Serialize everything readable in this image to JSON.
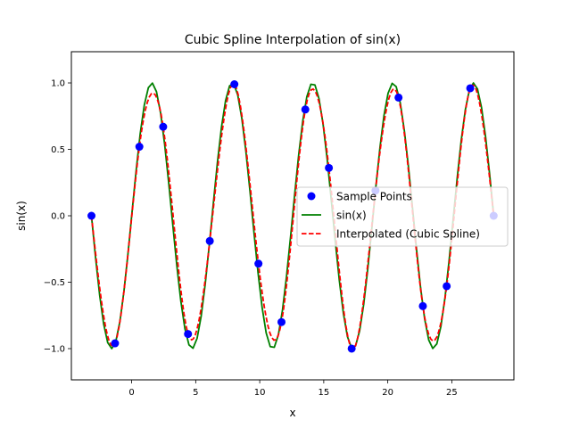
{
  "chart_data": {
    "type": "line",
    "title": "Cubic Spline Interpolation of sin(x)",
    "xlabel": "x",
    "ylabel": "sin(x)",
    "xlim": [
      -4.71,
      29.85
    ],
    "ylim": [
      -1.235,
      1.235
    ],
    "xticks": [
      0,
      5,
      10,
      15,
      20,
      25
    ],
    "xtick_labels": [
      "0",
      "5",
      "10",
      "15",
      "20",
      "25"
    ],
    "yticks": [
      -1.0,
      -0.5,
      0.0,
      0.5,
      1.0
    ],
    "ytick_labels": [
      "−1.0",
      "−0.5",
      "0.0",
      "0.5",
      "1.0"
    ],
    "grid": false,
    "legend_position": "center-right",
    "series": [
      {
        "name": "Sample Points",
        "kind": "scatter",
        "color": "#0000ff",
        "x": [
          -3.14,
          -1.3,
          0.6,
          2.46,
          4.4,
          6.1,
          8.02,
          9.9,
          11.7,
          13.56,
          15.4,
          17.18,
          19.04,
          20.84,
          22.74,
          24.6,
          26.44,
          28.27
        ],
        "y": [
          0.0,
          -0.96,
          0.52,
          0.67,
          -0.89,
          -0.19,
          0.99,
          -0.36,
          -0.8,
          0.8,
          0.36,
          -1.0,
          0.19,
          0.89,
          -0.68,
          -0.53,
          0.96,
          0.0
        ]
      },
      {
        "name": "sin(x)",
        "kind": "line",
        "color": "#008000",
        "style": "solid",
        "x_range": [
          -3.14159,
          28.27433
        ],
        "function": "sin"
      },
      {
        "name": "Interpolated (Cubic Spline)",
        "kind": "line",
        "color": "#ff0000",
        "style": "dashed",
        "source": "Sample Points"
      }
    ]
  }
}
